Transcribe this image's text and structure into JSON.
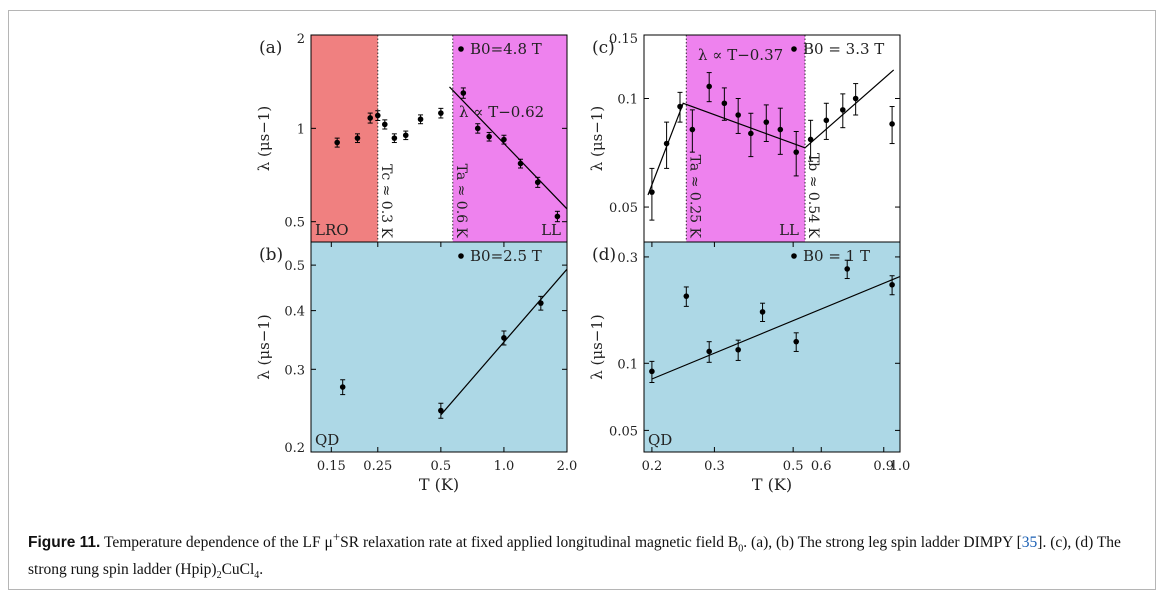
{
  "caption": {
    "label": "Figure 11.",
    "part1": " Temperature dependence of the LF μ",
    "plus": "+",
    "part2": "SR relaxation rate at fixed applied longitudinal magnetic field B",
    "sub0": "0",
    "part3": ". (a), (b) The strong leg spin ladder DIMPY [",
    "ref": "35",
    "part4": "]. (c), (d) The strong rung spin ladder (Hpip)",
    "sub2": "2",
    "part5": "CuCl",
    "sub4": "4",
    "part6": "."
  },
  "colors": {
    "lro": "#f08080",
    "ll": "#ee82ee",
    "qd": "#add8e6",
    "line": "#000000"
  },
  "chart_data": [
    {
      "id": "a",
      "type": "scatter",
      "scale": "log-log",
      "panel_label": "(a)",
      "legend": "B0=4.8 T",
      "ylabel": "λ (μs−1)",
      "xlim": [
        0.12,
        2.0
      ],
      "ylim": [
        0.43,
        2.0
      ],
      "yticks": [
        "0.5",
        "1",
        "2"
      ],
      "ytick_values": [
        0.5,
        1,
        2
      ],
      "regions": [
        {
          "name": "LRO",
          "x": [
            0.12,
            0.25
          ],
          "color": "#f08080"
        },
        {
          "name": "LL",
          "x": [
            0.57,
            2.0
          ],
          "color": "#ee82ee"
        }
      ],
      "vlines": [
        {
          "x": 0.25,
          "label": "Tc ≈ 0.3 K"
        },
        {
          "x": 0.57,
          "label": "Ta ≈ 0.6 K"
        }
      ],
      "fit_label": "λ ∝ T−0.62",
      "fit": [
        [
          0.55,
          1.36
        ],
        [
          2.0,
          0.55
        ]
      ],
      "points": [
        {
          "x": 0.16,
          "y": 0.9,
          "err": 0.03
        },
        {
          "x": 0.2,
          "y": 0.93,
          "err": 0.03
        },
        {
          "x": 0.23,
          "y": 1.08,
          "err": 0.04
        },
        {
          "x": 0.25,
          "y": 1.1,
          "err": 0.04
        },
        {
          "x": 0.27,
          "y": 1.03,
          "err": 0.035
        },
        {
          "x": 0.3,
          "y": 0.93,
          "err": 0.03
        },
        {
          "x": 0.34,
          "y": 0.95,
          "err": 0.03
        },
        {
          "x": 0.4,
          "y": 1.07,
          "err": 0.035
        },
        {
          "x": 0.5,
          "y": 1.12,
          "err": 0.04
        },
        {
          "x": 0.64,
          "y": 1.3,
          "err": 0.05
        },
        {
          "x": 0.75,
          "y": 1.0,
          "err": 0.035
        },
        {
          "x": 0.85,
          "y": 0.94,
          "err": 0.03
        },
        {
          "x": 1.0,
          "y": 0.92,
          "err": 0.03
        },
        {
          "x": 1.2,
          "y": 0.77,
          "err": 0.025
        },
        {
          "x": 1.45,
          "y": 0.67,
          "err": 0.025
        },
        {
          "x": 1.8,
          "y": 0.52,
          "err": 0.02
        }
      ]
    },
    {
      "id": "b",
      "type": "scatter",
      "scale": "log-log",
      "panel_label": "(b)",
      "legend": "B0=2.5 T",
      "ylabel": "λ (μs−1)",
      "xlabel": "T (K)",
      "xlim": [
        0.12,
        2.0
      ],
      "ylim": [
        0.2,
        0.56
      ],
      "xticks": [
        "0.15",
        "0.25",
        "0.5",
        "1.0",
        "2.0"
      ],
      "xtick_values": [
        0.15,
        0.25,
        0.5,
        1.0,
        2.0
      ],
      "yticks": [
        "0.2",
        "0.3",
        "0.4",
        "0.5"
      ],
      "ytick_values": [
        0.2,
        0.3,
        0.4,
        0.5
      ],
      "regions": [
        {
          "name": "QD",
          "x": [
            0.12,
            2.0
          ],
          "color": "#add8e6"
        }
      ],
      "fit": [
        [
          0.5,
          0.24
        ],
        [
          2.0,
          0.49
        ]
      ],
      "points": [
        {
          "x": 0.17,
          "y": 0.275,
          "err": 0.01
        },
        {
          "x": 0.5,
          "y": 0.245,
          "err": 0.009
        },
        {
          "x": 1.0,
          "y": 0.35,
          "err": 0.012
        },
        {
          "x": 1.5,
          "y": 0.415,
          "err": 0.014
        }
      ]
    },
    {
      "id": "c",
      "type": "scatter",
      "scale": "log-log",
      "panel_label": "(c)",
      "legend": "B0 = 3.3 T",
      "ylabel": "λ (μs−1)",
      "xlim": [
        0.19,
        1.0
      ],
      "ylim": [
        0.04,
        0.15
      ],
      "yticks": [
        "0.05",
        "0.1",
        "0.15"
      ],
      "ytick_values": [
        0.05,
        0.1,
        0.15
      ],
      "regions": [
        {
          "name": "LL",
          "x": [
            0.25,
            0.54
          ],
          "color": "#ee82ee"
        }
      ],
      "vlines": [
        {
          "x": 0.25,
          "label": "Ta ≈ 0.25 K"
        },
        {
          "x": 0.54,
          "label": "Tb ≈ 0.54 K"
        }
      ],
      "fit_label": "λ ∝ T−0.37",
      "fit": [
        [
          0.195,
          0.054
        ],
        [
          0.245,
          0.097
        ],
        [
          0.54,
          0.073
        ],
        [
          0.96,
          0.12
        ]
      ],
      "points": [
        {
          "x": 0.2,
          "y": 0.055,
          "err": 0.009
        },
        {
          "x": 0.22,
          "y": 0.075,
          "err": 0.011
        },
        {
          "x": 0.24,
          "y": 0.095,
          "err": 0.009
        },
        {
          "x": 0.26,
          "y": 0.082,
          "err": 0.011
        },
        {
          "x": 0.29,
          "y": 0.108,
          "err": 0.01
        },
        {
          "x": 0.32,
          "y": 0.097,
          "err": 0.01
        },
        {
          "x": 0.35,
          "y": 0.09,
          "err": 0.01
        },
        {
          "x": 0.38,
          "y": 0.08,
          "err": 0.011
        },
        {
          "x": 0.42,
          "y": 0.086,
          "err": 0.01
        },
        {
          "x": 0.46,
          "y": 0.082,
          "err": 0.012
        },
        {
          "x": 0.51,
          "y": 0.071,
          "err": 0.01
        },
        {
          "x": 0.56,
          "y": 0.077,
          "err": 0.01
        },
        {
          "x": 0.62,
          "y": 0.087,
          "err": 0.01
        },
        {
          "x": 0.69,
          "y": 0.093,
          "err": 0.01
        },
        {
          "x": 0.75,
          "y": 0.1,
          "err": 0.01
        },
        {
          "x": 0.95,
          "y": 0.085,
          "err": 0.01
        }
      ]
    },
    {
      "id": "d",
      "type": "scatter",
      "scale": "log-log",
      "panel_label": "(d)",
      "legend": "B0 = 1 T",
      "ylabel": "λ (μs−1)",
      "xlabel": "T (K)",
      "xlim": [
        0.19,
        1.0
      ],
      "ylim": [
        0.04,
        0.35
      ],
      "xticks": [
        "0.2",
        "0.3",
        "0.5",
        "1.0"
      ],
      "xtick_values": [
        0.2,
        0.3,
        0.5,
        1.0
      ],
      "extra_xticks": [
        "0.6",
        "0.9"
      ],
      "extra_xtick_values": [
        0.6,
        0.9
      ],
      "yticks": [
        "0.05",
        "0.1",
        "0.3"
      ],
      "ytick_values": [
        0.05,
        0.1,
        0.3
      ],
      "regions": [
        {
          "name": "QD",
          "x": [
            0.19,
            1.0
          ],
          "color": "#add8e6"
        }
      ],
      "fit": [
        [
          0.2,
          0.085
        ],
        [
          1.0,
          0.245
        ]
      ],
      "points": [
        {
          "x": 0.2,
          "y": 0.092,
          "err": 0.01
        },
        {
          "x": 0.25,
          "y": 0.2,
          "err": 0.02
        },
        {
          "x": 0.29,
          "y": 0.113,
          "err": 0.012
        },
        {
          "x": 0.35,
          "y": 0.115,
          "err": 0.012
        },
        {
          "x": 0.41,
          "y": 0.17,
          "err": 0.016
        },
        {
          "x": 0.51,
          "y": 0.125,
          "err": 0.012
        },
        {
          "x": 0.71,
          "y": 0.265,
          "err": 0.025
        },
        {
          "x": 0.95,
          "y": 0.225,
          "err": 0.022
        }
      ]
    }
  ]
}
